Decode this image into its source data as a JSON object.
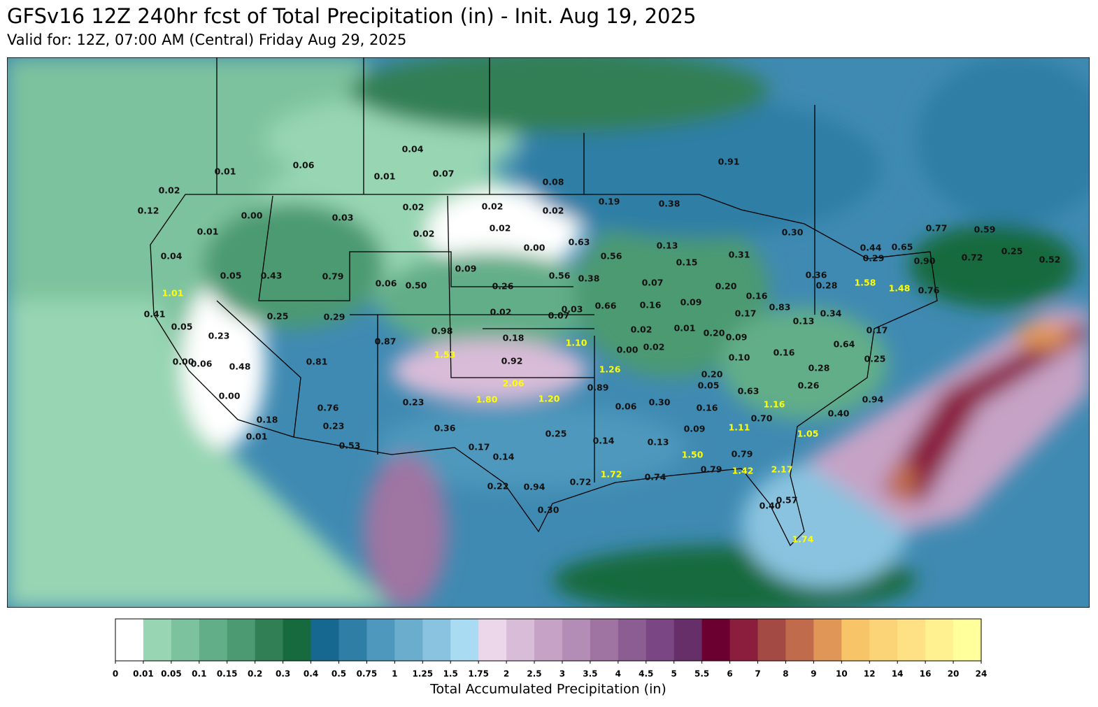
{
  "chart_data": {
    "type": "map",
    "title": "GFSv16 12Z 240hr fcst of Total Precipitation (in) - Init. Aug 19, 2025",
    "subtitle": "Valid for: 12Z, 07:00 AM (Central) Friday Aug 29, 2025",
    "colorbar_label": "Total Accumulated Precipitation (in)",
    "colorbar_ticks": [
      0,
      0.01,
      0.05,
      0.1,
      0.15,
      0.2,
      0.3,
      0.4,
      0.5,
      0.75,
      1,
      1.25,
      1.5,
      1.75,
      2,
      2.5,
      3,
      3.5,
      4,
      4.5,
      5,
      5.5,
      6,
      7,
      8,
      9,
      10,
      12,
      14,
      16,
      20,
      24
    ],
    "colorbar_colors": [
      "#ffffff",
      "#97d5b3",
      "#7dc29e",
      "#62ae88",
      "#4b9a72",
      "#317f55",
      "#176a3e",
      "#176891",
      "#2f7ea6",
      "#4d98bc",
      "#6aadcd",
      "#89c3df",
      "#a9dbf2",
      "#ecd6ea",
      "#d9bcd8",
      "#c6a3c6",
      "#b38db6",
      "#9f74a2",
      "#8c5d93",
      "#7a4683",
      "#672f69",
      "#6b0030",
      "#8a1e3c",
      "#a44a44",
      "#c06c4c",
      "#e09656",
      "#f8c468",
      "#fcd478",
      "#fee184",
      "#fff090",
      "#ffff9c"
    ],
    "series": [
      {
        "color": "#111111",
        "values": [
          0.04,
          0.06,
          0.01,
          0.01,
          0.07,
          0.08,
          0.91,
          0.02,
          0.12,
          0.0,
          0.03,
          0.02,
          0.02,
          0.02,
          0.19,
          0.38,
          0.01,
          0.02,
          0.02,
          0.0,
          0.63,
          0.3,
          0.77,
          0.59,
          0.04,
          0.56,
          0.13,
          0.31,
          0.44,
          0.65,
          0.25,
          0.52,
          0.9,
          0.72,
          0.29,
          0.15,
          0.05,
          0.43,
          0.79,
          0.06,
          0.5,
          0.09,
          0.26,
          0.56,
          0.38,
          0.07,
          0.2,
          0.36,
          0.28,
          0.76,
          0.16,
          0.83,
          0.41,
          0.25,
          0.29,
          0.02,
          0.07,
          0.03,
          0.66,
          0.16,
          0.09,
          0.17,
          0.34,
          0.13,
          0.05,
          0.23,
          0.98,
          0.87,
          0.18,
          0.02,
          0.01,
          0.2,
          0.09,
          0.17,
          0.0,
          0.06,
          0.48,
          0.81,
          0.92,
          0.0,
          0.02,
          0.64,
          0.16,
          0.1,
          0.25,
          0.28,
          0.2,
          0.89,
          0.05,
          0.63,
          0.26,
          0.94,
          0.0,
          0.76,
          0.23,
          0.06,
          0.3,
          0.16,
          0.7,
          0.4,
          0.18,
          0.23,
          0.36,
          0.09,
          0.01,
          0.53,
          0.17,
          0.25,
          0.14,
          0.13,
          0.14,
          0.79,
          0.79,
          0.22,
          0.94,
          0.72,
          0.74,
          0.57,
          0.4,
          0.3
        ],
        "value_labels": [
          "0.04",
          "0.06",
          "0.01",
          "0.01",
          "0.07",
          "0.08",
          "0.91",
          "0.02",
          "0.12",
          "0.00",
          "0.03",
          "0.02",
          "0.02",
          "0.02",
          "0.19",
          "0.38",
          "0.01",
          "0.02",
          "0.02",
          "0.00",
          "0.63",
          "0.30",
          "0.77",
          "0.59",
          "0.04",
          "0.56",
          "0.13",
          "0.31",
          "0.44",
          "0.65",
          "0.25",
          "0.52",
          "0.90",
          "0.72",
          "0.29",
          "0.15",
          "0.05",
          "0.43",
          "0.79",
          "0.06",
          "0.50",
          "0.09",
          "0.26",
          "0.56",
          "0.38",
          "0.07",
          "0.20",
          "0.36",
          "0.28",
          "0.76",
          "0.16",
          "0.83",
          "0.41",
          "0.25",
          "0.29",
          "0.02",
          "0.07",
          "0.03",
          "0.66",
          "0.16",
          "0.09",
          "0.17",
          "0.34",
          "0.13",
          "0.05",
          "0.23",
          "0.98",
          "0.87",
          "0.18",
          "0.02",
          "0.01",
          "0.20",
          "0.09",
          "0.17",
          "0.00",
          "0.06",
          "0.48",
          "0.81",
          "0.92",
          "0.00",
          "0.02",
          "0.64",
          "0.16",
          "0.10",
          "0.25",
          "0.28",
          "0.20",
          "0.89",
          "0.05",
          "0.63",
          "0.26",
          "0.94",
          "0.00",
          "0.76",
          "0.23",
          "0.06",
          "0.30",
          "0.16",
          "0.70",
          "0.40",
          "0.18",
          "0.23",
          "0.36",
          "0.09",
          "0.01",
          "0.53",
          "0.17",
          "0.25",
          "0.14",
          "0.13",
          "0.14",
          "0.79",
          "0.79",
          "0.22",
          "0.94",
          "0.72",
          "0.74",
          "0.57",
          "0.40",
          "0.30"
        ]
      },
      {
        "color": "#ffff00",
        "values": [
          1.01,
          1.1,
          1.53,
          1.26,
          2.06,
          1.8,
          1.2,
          1.58,
          1.48,
          1.16,
          1.11,
          1.05,
          1.5,
          1.72,
          1.42,
          2.17,
          1.74
        ],
        "value_labels": [
          "1.01",
          "1.10",
          "1.53",
          "1.26",
          "2.06",
          "1.80",
          "1.20",
          "1.58",
          "1.48",
          "1.16",
          "1.11",
          "1.05",
          "1.50",
          "1.72",
          "1.42",
          "2.17",
          "1.74"
        ]
      }
    ]
  }
}
